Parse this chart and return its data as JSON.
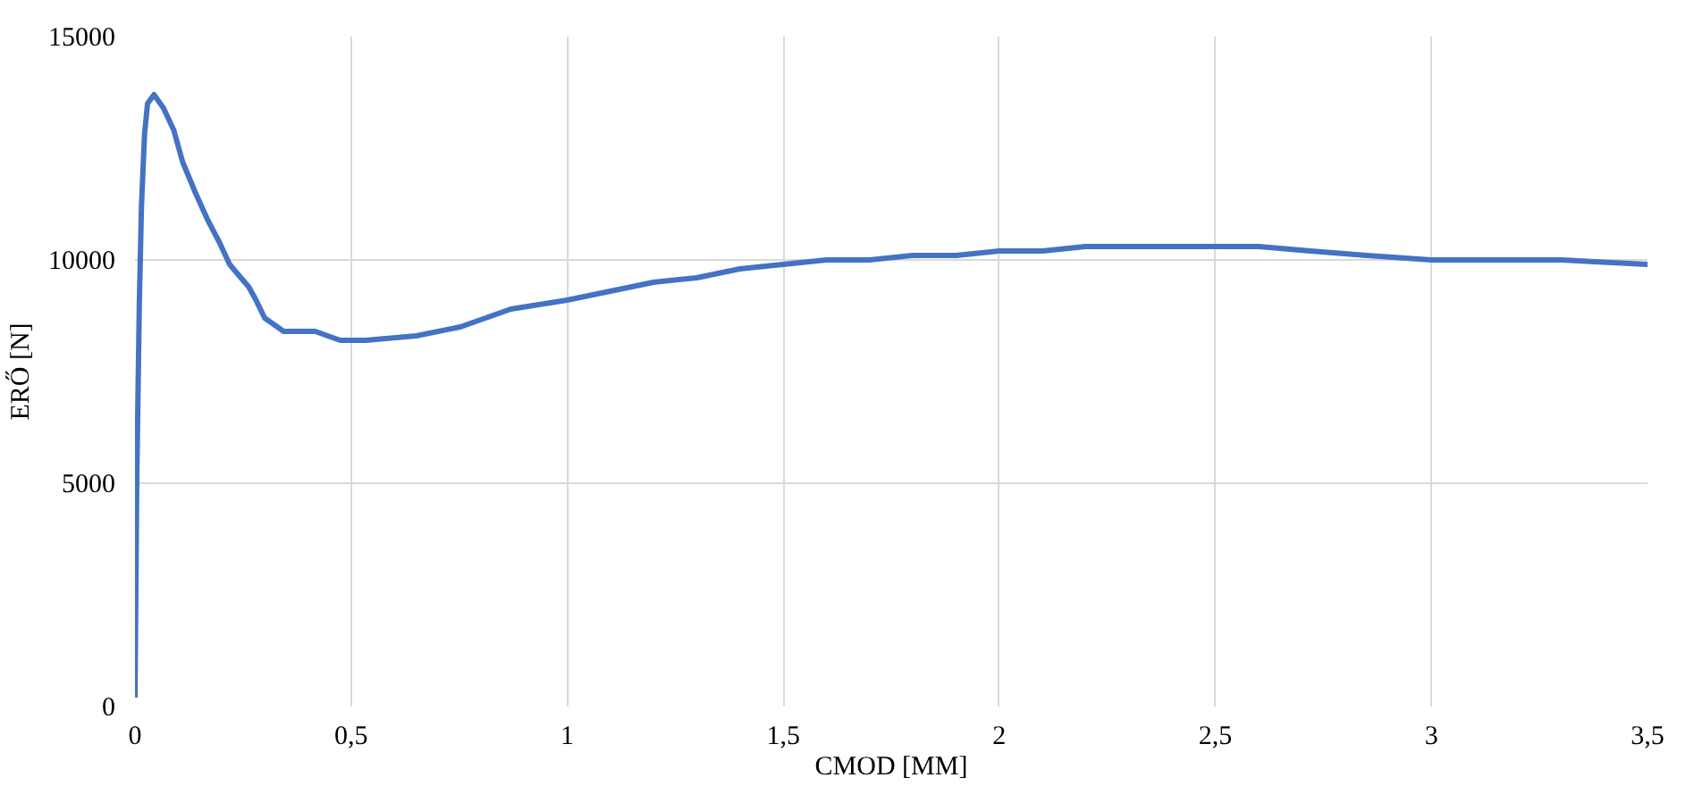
{
  "chart_data": {
    "type": "line",
    "xlabel": "CMOD [MM]",
    "ylabel": "ERŐ [N]",
    "xlim": [
      0,
      3.5
    ],
    "ylim": [
      0,
      15000
    ],
    "xticks": [
      0,
      {
        "value": 0.5,
        "label": "0,5"
      },
      1,
      {
        "value": 1.5,
        "label": "1,5"
      },
      2,
      {
        "value": 2.5,
        "label": "2,5"
      },
      3,
      {
        "value": 3.5,
        "label": "3,5"
      }
    ],
    "yticks": [
      0,
      5000,
      10000,
      15000
    ],
    "grid": true,
    "marker": "none",
    "line_style": "solid",
    "series": [
      {
        "color": "#4472c4",
        "x": [
          0,
          0.004,
          0.01,
          0.015,
          0.022,
          0.029,
          0.044,
          0.066,
          0.09,
          0.11,
          0.14,
          0.168,
          0.195,
          0.219,
          0.245,
          0.263,
          0.28,
          0.3,
          0.344,
          0.417,
          0.475,
          0.534,
          0.651,
          0.753,
          0.87,
          1.0,
          1.1,
          1.2,
          1.3,
          1.4,
          1.5,
          1.6,
          1.7,
          1.8,
          1.9,
          2.0,
          2.1,
          2.2,
          2.27,
          2.4,
          2.5,
          2.6,
          2.72,
          2.85,
          3.0,
          3.15,
          3.3,
          3.5
        ],
        "values": [
          200,
          5000,
          9000,
          11200,
          12800,
          13500,
          13700,
          13400,
          12900,
          12200,
          11500,
          10900,
          10400,
          9900,
          9600,
          9400,
          9100,
          8700,
          8400,
          8400,
          8200,
          8200,
          8300,
          8500,
          8900,
          9100,
          9300,
          9500,
          9600,
          9800,
          9900,
          10000,
          10000,
          10100,
          10100,
          10200,
          10200,
          10300,
          10300,
          10300,
          10300,
          10300,
          10200,
          10100,
          10000,
          10000,
          10000,
          9900
        ]
      }
    ]
  }
}
